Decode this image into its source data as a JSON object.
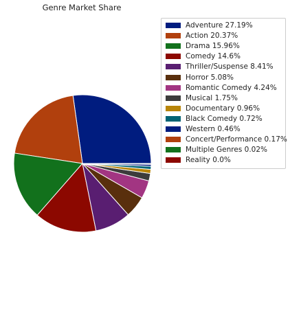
{
  "chart_data": {
    "type": "pie",
    "title": "Genre Market Share",
    "legend_position": "right",
    "start_angle_deg": 0,
    "direction": "counterclockwise",
    "slices": [
      {
        "label": "Adventure 27.19%",
        "name": "Adventure",
        "value": 27.19,
        "color": "#001c7f"
      },
      {
        "label": "Action 20.37%",
        "name": "Action",
        "value": 20.37,
        "color": "#b1400d"
      },
      {
        "label": "Drama 15.96%",
        "name": "Drama",
        "value": 15.96,
        "color": "#12711c"
      },
      {
        "label": "Comedy 14.6%",
        "name": "Comedy",
        "value": 14.6,
        "color": "#8c0800"
      },
      {
        "label": "Thriller/Suspense 8.41%",
        "name": "Thriller/Suspense",
        "value": 8.41,
        "color": "#591e71"
      },
      {
        "label": "Horror 5.08%",
        "name": "Horror",
        "value": 5.08,
        "color": "#592f0d"
      },
      {
        "label": "Romantic Comedy 4.24%",
        "name": "Romantic Comedy",
        "value": 4.24,
        "color": "#a23582"
      },
      {
        "label": "Musical 1.75%",
        "name": "Musical",
        "value": 1.75,
        "color": "#3c3c3c"
      },
      {
        "label": "Documentary 0.96%",
        "name": "Documentary",
        "value": 0.96,
        "color": "#b8850a"
      },
      {
        "label": "Black Comedy 0.72%",
        "name": "Black Comedy",
        "value": 0.72,
        "color": "#006374"
      },
      {
        "label": "Western 0.46%",
        "name": "Western",
        "value": 0.46,
        "color": "#001c7f"
      },
      {
        "label": "Concert/Performance 0.17%",
        "name": "Concert/Performance",
        "value": 0.17,
        "color": "#b1400d"
      },
      {
        "label": "Multiple Genres 0.02%",
        "name": "Multiple Genres",
        "value": 0.02,
        "color": "#12711c"
      },
      {
        "label": "Reality 0.0%",
        "name": "Reality",
        "value": 0.0,
        "color": "#8c0800"
      }
    ]
  }
}
